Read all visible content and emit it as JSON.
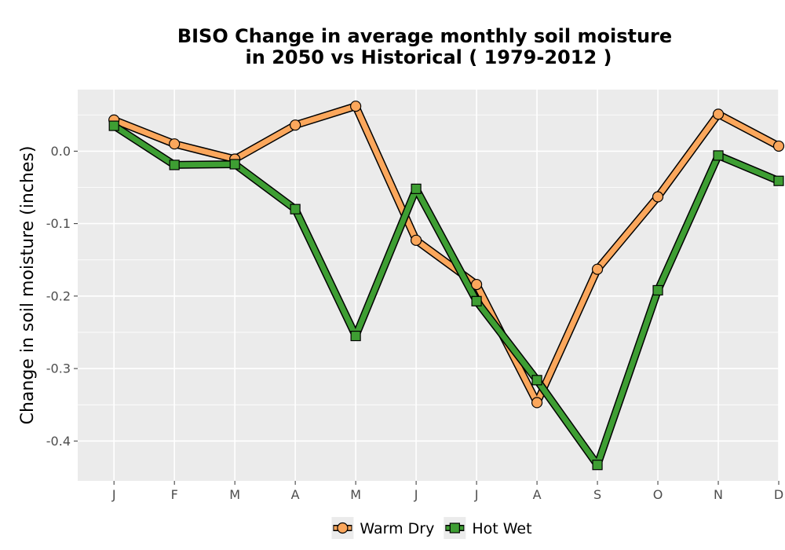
{
  "chart_data": {
    "type": "line",
    "title_lines": [
      "BISO  Change in average monthly soil moisture",
      "in 2050 vs Historical ( 1979-2012 )"
    ],
    "xlabel": "",
    "ylabel": "Change in soil moisture (inches)",
    "categories": [
      "J",
      "F",
      "M",
      "A",
      "M",
      "J",
      "J",
      "A",
      "S",
      "O",
      "N",
      "D"
    ],
    "yticks": [
      0.0,
      -0.1,
      -0.2,
      -0.3,
      -0.4
    ],
    "ytick_labels": [
      "0.0",
      "-0.1",
      "-0.2",
      "-0.3",
      "-0.4"
    ],
    "ylim": [
      -0.455,
      0.085
    ],
    "grid": true,
    "legend_position": "bottom",
    "series": [
      {
        "name": "Warm Dry",
        "marker": "circle",
        "color": "#FBA75C",
        "values": [
          0.043,
          0.01,
          -0.011,
          0.036,
          0.062,
          -0.123,
          -0.184,
          -0.347,
          -0.163,
          -0.063,
          0.051,
          0.007
        ]
      },
      {
        "name": "Hot Wet",
        "marker": "square",
        "color": "#3E9E33",
        "values": [
          0.035,
          -0.019,
          -0.018,
          -0.08,
          -0.255,
          -0.052,
          -0.207,
          -0.316,
          -0.433,
          -0.192,
          -0.006,
          -0.041
        ]
      }
    ]
  }
}
